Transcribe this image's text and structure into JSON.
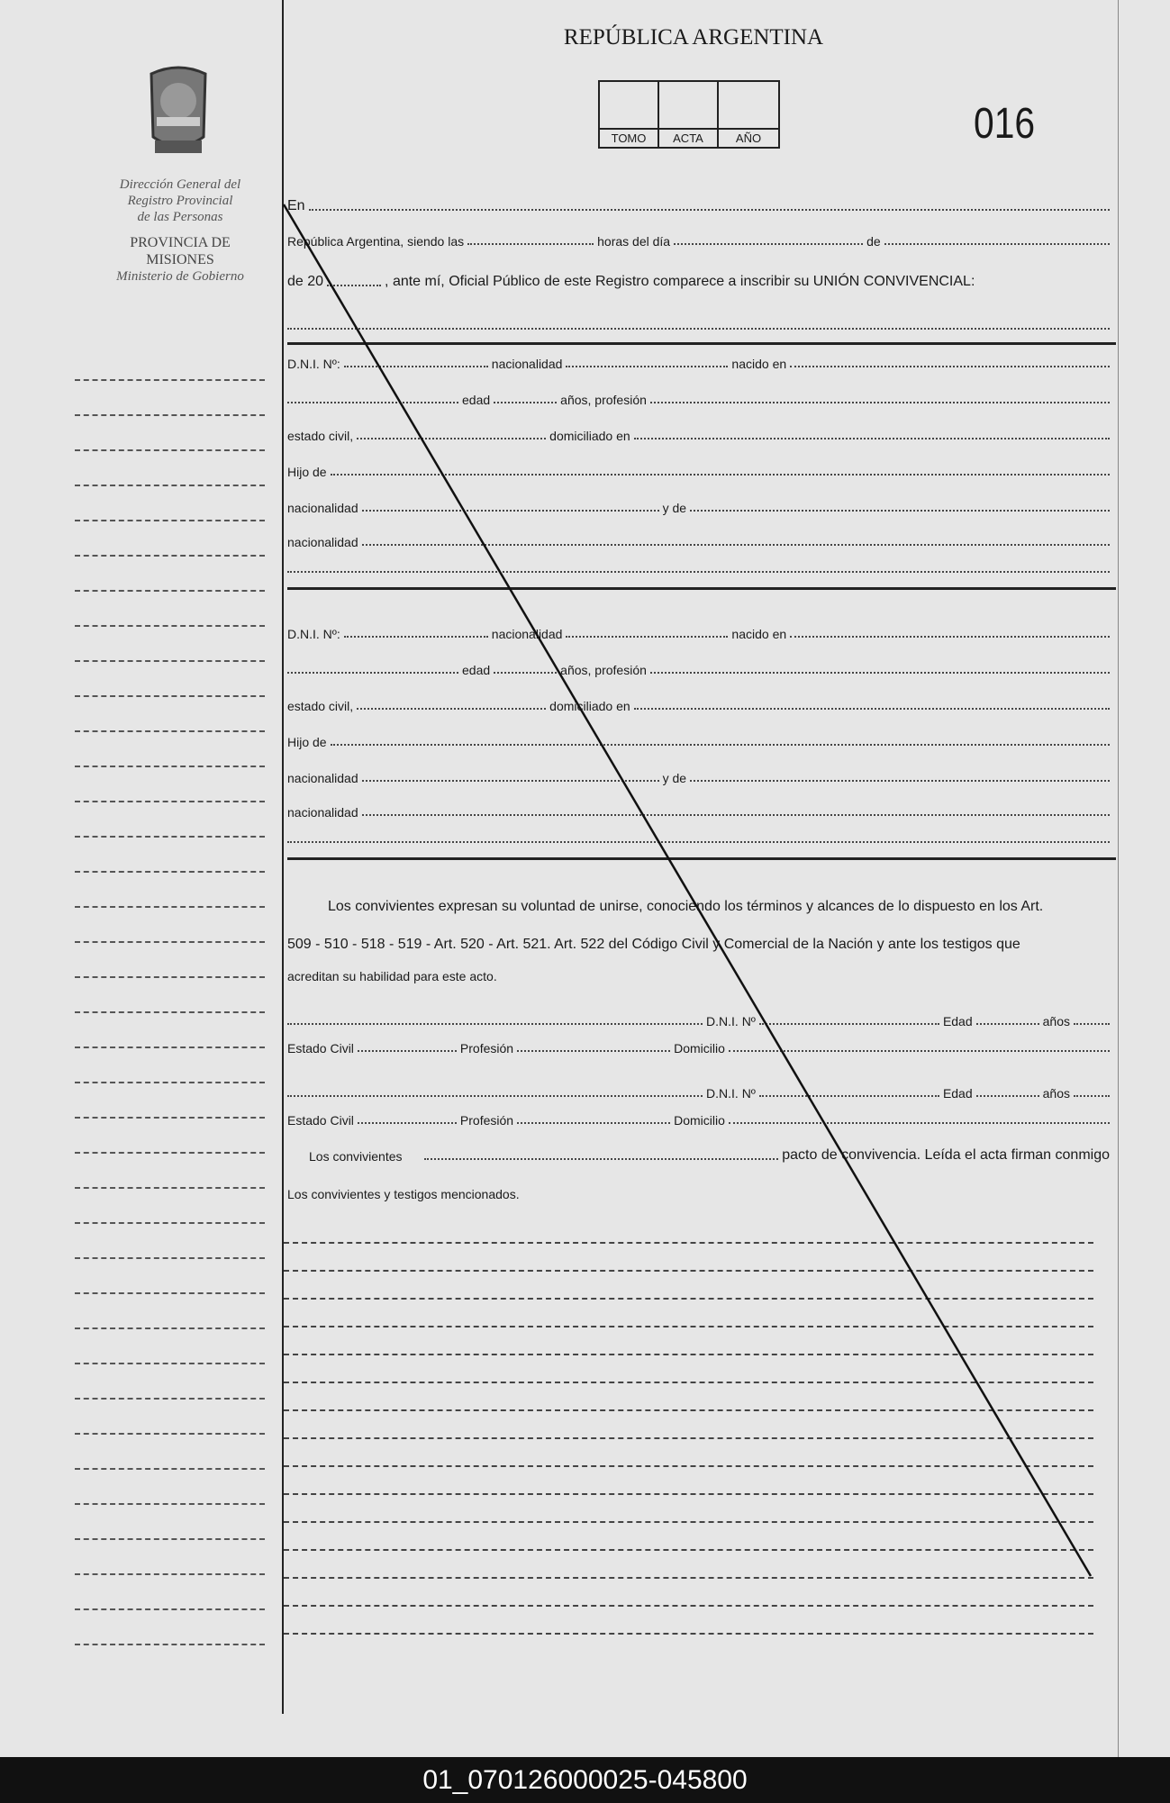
{
  "header": {
    "country": "REPÚBLICA ARGENTINA",
    "boxes": [
      "TOMO",
      "ACTA",
      "AÑO"
    ],
    "form_number": "016"
  },
  "sidebar": {
    "institution": [
      "Dirección General del",
      "Registro Provincial",
      "de las Personas"
    ],
    "province": [
      "PROVINCIA DE",
      "MISIONES"
    ],
    "ministry": "Ministerio de Gobierno",
    "logo_text": "MISIONES"
  },
  "intro": {
    "en": "En",
    "republica": "República Argentina, siendo las",
    "horas": "horas del día",
    "de": "de",
    "de20": "de 20",
    "ante": ", ante mí, Oficial Público de este Registro comparece a inscribir su UNIÓN CONVIVENCIAL:"
  },
  "person": {
    "dni": "D.N.I. Nº:",
    "nacionalidad": "nacionalidad",
    "nacido": "nacido en",
    "edad": "edad",
    "anos_prof": "años, profesión",
    "estado": "estado civil,",
    "domiciliado": "domiciliado en",
    "hijo": "Hijo de",
    "y_de": "y de"
  },
  "declaration": {
    "line1": "Los convivientes expresan su voluntad de unirse, conociendo los términos y alcances de lo dispuesto en los Art.",
    "line2": "509 - 510 - 518 - 519 - Art. 520 - Art. 521. Art. 522 del Código Civil y Comercial de la Nación y ante los testigos que",
    "line3": "acreditan su habilidad para este acto."
  },
  "witness": {
    "dni": "D.N.I. Nº",
    "edad": "Edad",
    "anos": "años",
    "estado": "Estado Civil",
    "profesion": "Profesión",
    "domicilio": "Domicilio"
  },
  "closing": {
    "convivientes": "Los convivientes",
    "pacto": "pacto de convivencia. Leída el acta firman conmigo",
    "final": "Los convivientes y testigos mencionados."
  },
  "footer": {
    "id": "01_070126000025-045800"
  }
}
